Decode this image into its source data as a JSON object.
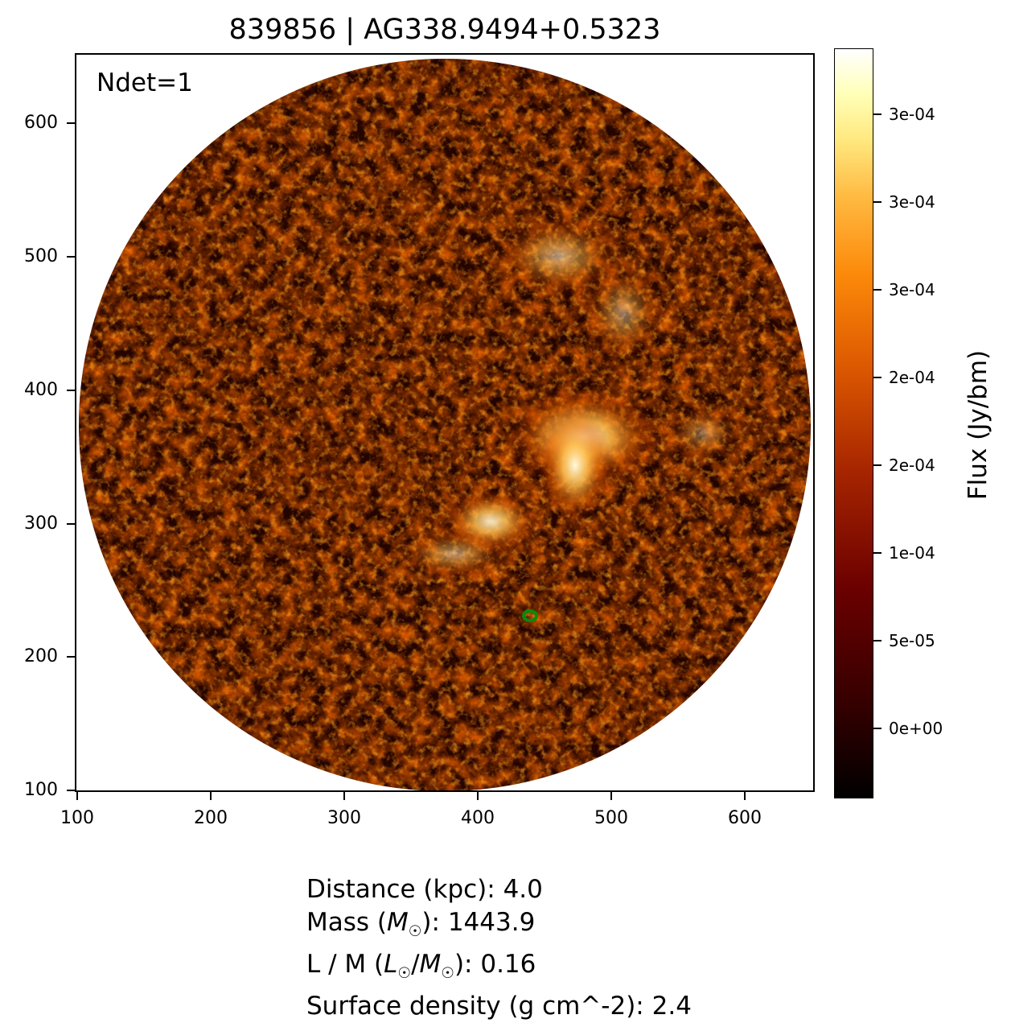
{
  "title": "839856 | AG338.9494+0.5323",
  "annotation": "Ndet=1",
  "axes": {
    "x_ticks": [
      "100",
      "200",
      "300",
      "400",
      "500",
      "600"
    ],
    "y_ticks": [
      "600",
      "500",
      "400",
      "300",
      "200",
      "100"
    ]
  },
  "colorbar": {
    "label": "Flux (Jy/bm)",
    "ticks": [
      "3e-04",
      "3e-04",
      "3e-04",
      "2e-04",
      "2e-04",
      "1e-04",
      "5e-05",
      "0e+00"
    ],
    "colormap": "afmhot"
  },
  "info": {
    "distance_label": "Distance (kpc): ",
    "distance_value": "4.0",
    "mass_label_pre": "Mass (",
    "mass_symbol": "M",
    "mass_label_post": "): ",
    "mass_value": "1443.9",
    "lm_label_pre": "L / M (",
    "lm_symbol_l": "L",
    "lm_symbol_m": "M",
    "lm_label_post": "): ",
    "lm_value": "0.16",
    "surface_label": "Surface density (g cm^-2): ",
    "surface_value": "2.4"
  },
  "sun_subscript": "☉",
  "colors": {
    "marker": "#0a8a0a"
  }
}
